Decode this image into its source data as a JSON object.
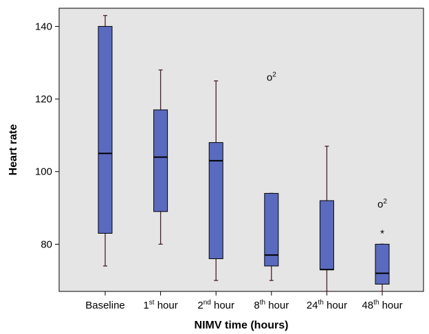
{
  "chart_data": {
    "type": "box",
    "xlabel": "NIMV time (hours)",
    "ylabel": "Heart rate",
    "ylim": [
      67,
      145
    ],
    "yticks": [
      80,
      100,
      120,
      140
    ],
    "grid": false,
    "colors": {
      "plot_bg": "#e5e5e5",
      "box_fill": "#5a6bbf",
      "box_edge": "#000000",
      "whisker": "#4a1f2a",
      "median": "#000000"
    },
    "categories": [
      {
        "base": "Baseline",
        "sup": "",
        "rest": ""
      },
      {
        "base": "1",
        "sup": "st",
        "rest": " hour"
      },
      {
        "base": "2",
        "sup": "nd",
        "rest": " hour"
      },
      {
        "base": "8",
        "sup": "th",
        "rest": " hour"
      },
      {
        "base": "24",
        "sup": "th",
        "rest": " hour"
      },
      {
        "base": "48",
        "sup": "th",
        "rest": " hour"
      }
    ],
    "boxes": [
      {
        "whisker_low": 74,
        "q1": 83,
        "median": 105,
        "q3": 140,
        "whisker_high": 143
      },
      {
        "whisker_low": 80,
        "q1": 89,
        "median": 104,
        "q3": 117,
        "whisker_high": 128
      },
      {
        "whisker_low": 70,
        "q1": 76,
        "median": 103,
        "q3": 108,
        "whisker_high": 125
      },
      {
        "whisker_low": 70,
        "q1": 74,
        "median": 77,
        "q3": 94,
        "whisker_high": 94
      },
      {
        "whisker_low": 67,
        "q1": 73,
        "median": 73,
        "q3": 92,
        "whisker_high": 107
      },
      {
        "whisker_low": 67,
        "q1": 69,
        "median": 72,
        "q3": 80,
        "whisker_high": 80
      }
    ],
    "outliers": [
      {
        "category_index": 3,
        "value": 126,
        "marker": "o",
        "label": "2"
      },
      {
        "category_index": 5,
        "value": 91,
        "marker": "o",
        "label": "2"
      },
      {
        "category_index": 5,
        "value": 83,
        "marker": "*",
        "label": ""
      }
    ]
  }
}
